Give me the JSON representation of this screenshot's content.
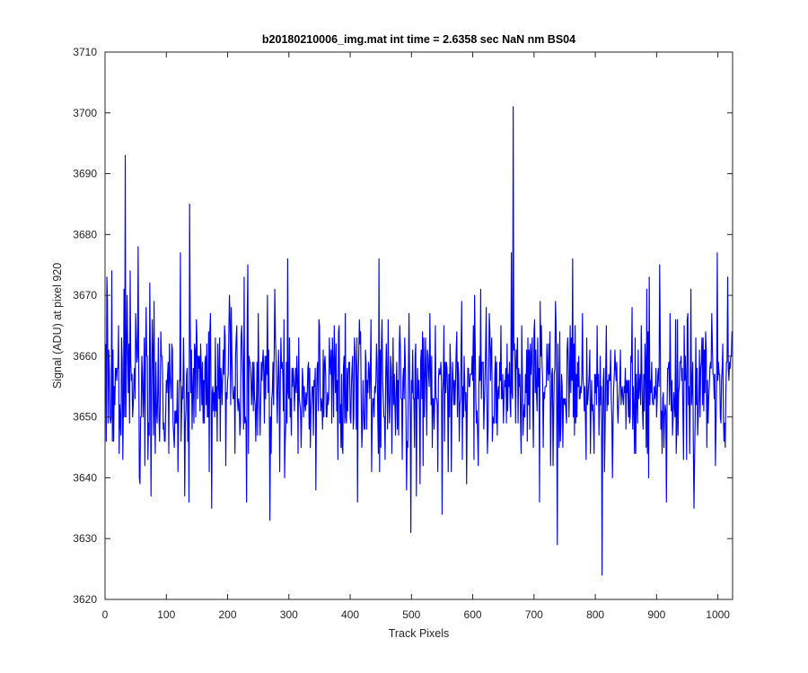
{
  "chart_data": {
    "type": "line",
    "title": "b20180210006_img.mat int time = 2.6358 sec  NaN nm BS04",
    "xlabel": "Track Pixels",
    "ylabel": "Signal (ADU) at pixel 920",
    "xlim": [
      0,
      1024
    ],
    "ylim": [
      3620,
      3710
    ],
    "xticks": [
      0,
      100,
      200,
      300,
      400,
      500,
      600,
      700,
      800,
      900,
      1000
    ],
    "yticks": [
      3620,
      3630,
      3640,
      3650,
      3660,
      3670,
      3680,
      3690,
      3700,
      3710
    ],
    "grid": false,
    "legend": "none",
    "colors": {
      "series": "#0000ff",
      "axes": "#262626",
      "background": "#ffffff"
    },
    "series": [
      {
        "seed": 20180210,
        "n": 1024,
        "mean": 3655,
        "std": 6.3,
        "min": 3624,
        "max": 3701,
        "notable_points": [
          {
            "x": 28,
            "y": 3643
          },
          {
            "x": 32,
            "y": 3693
          },
          {
            "x": 40,
            "y": 3674
          },
          {
            "x": 53,
            "y": 3678
          },
          {
            "x": 118,
            "y": 3641
          },
          {
            "x": 137,
            "y": 3685
          },
          {
            "x": 173,
            "y": 3635
          },
          {
            "x": 232,
            "y": 3675
          },
          {
            "x": 268,
            "y": 3633
          },
          {
            "x": 297,
            "y": 3676
          },
          {
            "x": 411,
            "y": 3636
          },
          {
            "x": 446,
            "y": 3676
          },
          {
            "x": 498,
            "y": 3631
          },
          {
            "x": 549,
            "y": 3634
          },
          {
            "x": 662,
            "y": 3677
          },
          {
            "x": 665,
            "y": 3701
          },
          {
            "x": 708,
            "y": 3636
          },
          {
            "x": 737,
            "y": 3629
          },
          {
            "x": 762,
            "y": 3676
          },
          {
            "x": 810,
            "y": 3624
          },
          {
            "x": 904,
            "y": 3675
          },
          {
            "x": 915,
            "y": 3636
          },
          {
            "x": 960,
            "y": 3635
          },
          {
            "x": 998,
            "y": 3677
          },
          {
            "x": 1015,
            "y": 3673
          }
        ]
      }
    ]
  }
}
